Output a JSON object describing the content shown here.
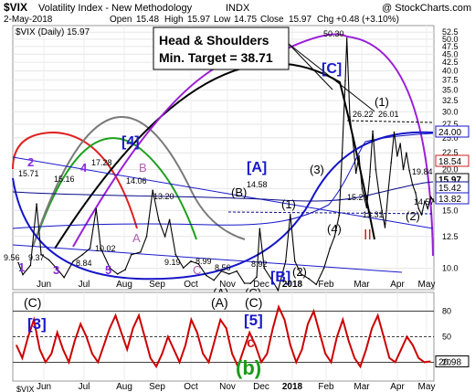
{
  "header": {
    "ticker": "$VIX",
    "name": "Volatility Index - New Methodology",
    "exchange": "INDX",
    "copyright": "@ StockCharts.com",
    "date": "2-May-2018",
    "open_label": "Open",
    "open": "15.48",
    "high_label": "High",
    "high": "15.97",
    "low_label": "Low",
    "low": "14.75",
    "close_label": "Close",
    "close": "15.97",
    "chg_label": "Chg",
    "chg": "+0.48 (+3.10%)"
  },
  "legend": {
    "text": "$VIX (Daily) 15.97",
    "bottom_ticker": "$VIX"
  },
  "annotation": {
    "line1": "Head & Shoulders",
    "line2": "Min. Target = 38.71"
  },
  "colors": {
    "price": "#000000",
    "ma50": "#1515c8",
    "ma200": "#0a0a8a",
    "purple_cycle": "#9b1fd6",
    "gray_cycle": "#808080",
    "red_cycle": "#e02020",
    "green_cycle": "#1aa01a",
    "label_blue": "#1a1acc",
    "label_purple": "#8a2be2",
    "label_red": "#cc2020",
    "label_green": "#1a9a1a",
    "osc": "#cc0000",
    "osc_line": "#000000"
  },
  "chart_data": [
    {
      "type": "line",
      "title": "$VIX (Daily) 15.97",
      "x_labels": [
        "Jun",
        "Jul",
        "Aug",
        "Sep",
        "Oct",
        "Nov",
        "Dec",
        "2018",
        "Feb",
        "Mar",
        "Apr",
        "May"
      ],
      "y_scale": "log",
      "ylim": [
        8.6,
        55
      ],
      "y_ticks": [
        "52.5",
        "50.0",
        "47.5",
        "45.0",
        "42.5",
        "40.0",
        "37.5",
        "35.0",
        "32.5",
        "30.0",
        "27.5",
        "25.0",
        "22.5",
        "20.0",
        "17.5",
        "15.0",
        "12.5",
        "10.0"
      ],
      "price_highlights": [
        "24.00",
        "18.54",
        "15.97",
        "15.42",
        "13.82"
      ],
      "price_series": [
        {
          "x": 0,
          "y": 10.4
        },
        {
          "x": 3,
          "y": 9.56
        },
        {
          "x": 8,
          "y": 10.2
        },
        {
          "x": 12,
          "y": 15.71
        },
        {
          "x": 15,
          "y": 11.0
        },
        {
          "x": 20,
          "y": 10.6
        },
        {
          "x": 25,
          "y": 10.0
        },
        {
          "x": 30,
          "y": 9.37
        },
        {
          "x": 36,
          "y": 10.5
        },
        {
          "x": 42,
          "y": 11.0
        },
        {
          "x": 47,
          "y": 11.5
        },
        {
          "x": 51,
          "y": 15.16
        },
        {
          "x": 54,
          "y": 11.5
        },
        {
          "x": 60,
          "y": 10.0
        },
        {
          "x": 65,
          "y": 9.6
        },
        {
          "x": 70,
          "y": 9.9
        },
        {
          "x": 74,
          "y": 11.0
        },
        {
          "x": 80,
          "y": 11.2
        },
        {
          "x": 84,
          "y": 12.5
        },
        {
          "x": 88,
          "y": 17.28
        },
        {
          "x": 92,
          "y": 14.0
        },
        {
          "x": 96,
          "y": 12.5
        },
        {
          "x": 99,
          "y": 14.06
        },
        {
          "x": 103,
          "y": 11.0
        },
        {
          "x": 108,
          "y": 10.02
        },
        {
          "x": 113,
          "y": 10.5
        },
        {
          "x": 118,
          "y": 10.3
        },
        {
          "x": 123,
          "y": 9.5
        },
        {
          "x": 128,
          "y": 9.19
        },
        {
          "x": 133,
          "y": 9.8
        },
        {
          "x": 138,
          "y": 9.6
        },
        {
          "x": 143,
          "y": 9.8
        },
        {
          "x": 148,
          "y": 9.0
        },
        {
          "x": 152,
          "y": 8.99
        },
        {
          "x": 156,
          "y": 9.4
        },
        {
          "x": 158,
          "y": 13.2
        },
        {
          "x": 161,
          "y": 10.0
        },
        {
          "x": 166,
          "y": 9.2
        },
        {
          "x": 170,
          "y": 8.56
        },
        {
          "x": 175,
          "y": 10.5
        },
        {
          "x": 178,
          "y": 14.58
        },
        {
          "x": 181,
          "y": 10.5
        },
        {
          "x": 185,
          "y": 9.6
        },
        {
          "x": 190,
          "y": 9.3
        },
        {
          "x": 195,
          "y": 8.92
        },
        {
          "x": 200,
          "y": 10.0
        },
        {
          "x": 204,
          "y": 11.5
        },
        {
          "x": 207,
          "y": 12.5
        },
        {
          "x": 210,
          "y": 14.5
        },
        {
          "x": 212,
          "y": 22.5
        },
        {
          "x": 214,
          "y": 37.32
        },
        {
          "x": 215,
          "y": 50.3
        },
        {
          "x": 217,
          "y": 29.0
        },
        {
          "x": 219,
          "y": 24.5
        },
        {
          "x": 221,
          "y": 19.5
        },
        {
          "x": 223,
          "y": 22.0
        },
        {
          "x": 225,
          "y": 17.5
        },
        {
          "x": 228,
          "y": 15.29
        },
        {
          "x": 230,
          "y": 19.0
        },
        {
          "x": 232,
          "y": 26.22
        },
        {
          "x": 234,
          "y": 20.0
        },
        {
          "x": 236,
          "y": 17.0
        },
        {
          "x": 238,
          "y": 15.0
        },
        {
          "x": 240,
          "y": 13.31
        },
        {
          "x": 242,
          "y": 17.0
        },
        {
          "x": 244,
          "y": 21.0
        },
        {
          "x": 246,
          "y": 26.01
        },
        {
          "x": 248,
          "y": 22.0
        },
        {
          "x": 250,
          "y": 24.0
        },
        {
          "x": 252,
          "y": 20.0
        },
        {
          "x": 254,
          "y": 22.5
        },
        {
          "x": 256,
          "y": 19.84
        },
        {
          "x": 258,
          "y": 18.0
        },
        {
          "x": 260,
          "y": 17.0
        },
        {
          "x": 262,
          "y": 15.2
        },
        {
          "x": 264,
          "y": 14.57
        },
        {
          "x": 266,
          "y": 16.0
        },
        {
          "x": 268,
          "y": 15.2
        },
        {
          "x": 270,
          "y": 16.5
        },
        {
          "x": 272,
          "y": 15.97
        }
      ],
      "price_labels": [
        "9.56",
        "9.37",
        "15.71",
        "15.16",
        "8.84",
        "17.28",
        "14.06",
        "10.02",
        "9.19",
        "8.99",
        "13.20",
        "8.56",
        "14.58",
        "8.92",
        "50.30",
        "26.22",
        "26.01",
        "15.29",
        "13.31",
        "19.84",
        "14.57"
      ],
      "wave_labels": [
        "1",
        "2",
        "3",
        "4",
        "5",
        "A",
        "B",
        "C",
        "[4]",
        "[A]",
        "(B)",
        "(1)",
        "(3)",
        "[C]",
        "(4)",
        "(1)",
        "(2)",
        "II",
        "(A)",
        "(C)",
        "(2)",
        "[B]"
      ]
    },
    {
      "type": "line",
      "title": "",
      "x_labels": [
        "Jun",
        "Jul",
        "Aug",
        "Sep",
        "Oct",
        "Nov",
        "Dec",
        "2018",
        "Feb",
        "Mar",
        "Apr",
        "May"
      ],
      "ylim": [
        0,
        100
      ],
      "y_ticks": [
        "80",
        "50",
        "20"
      ],
      "current_value": "20.98",
      "values": [
        40,
        25,
        50,
        70,
        35,
        20,
        30,
        55,
        35,
        20,
        45,
        65,
        50,
        30,
        20,
        40,
        60,
        75,
        55,
        35,
        60,
        75,
        50,
        25,
        15,
        30,
        50,
        35,
        20,
        40,
        70,
        55,
        30,
        20,
        45,
        70,
        60,
        30,
        15,
        35,
        55,
        40,
        20,
        30,
        60,
        85,
        70,
        40,
        20,
        35,
        65,
        80,
        55,
        30,
        20,
        50,
        70,
        45,
        25,
        15,
        35,
        60,
        75,
        50,
        25,
        20,
        35,
        50,
        40,
        25,
        20,
        21
      ],
      "wave_labels": [
        "(C)",
        "[3]",
        "(A)",
        "(C)",
        "[5]",
        "c",
        "(b)"
      ]
    }
  ]
}
